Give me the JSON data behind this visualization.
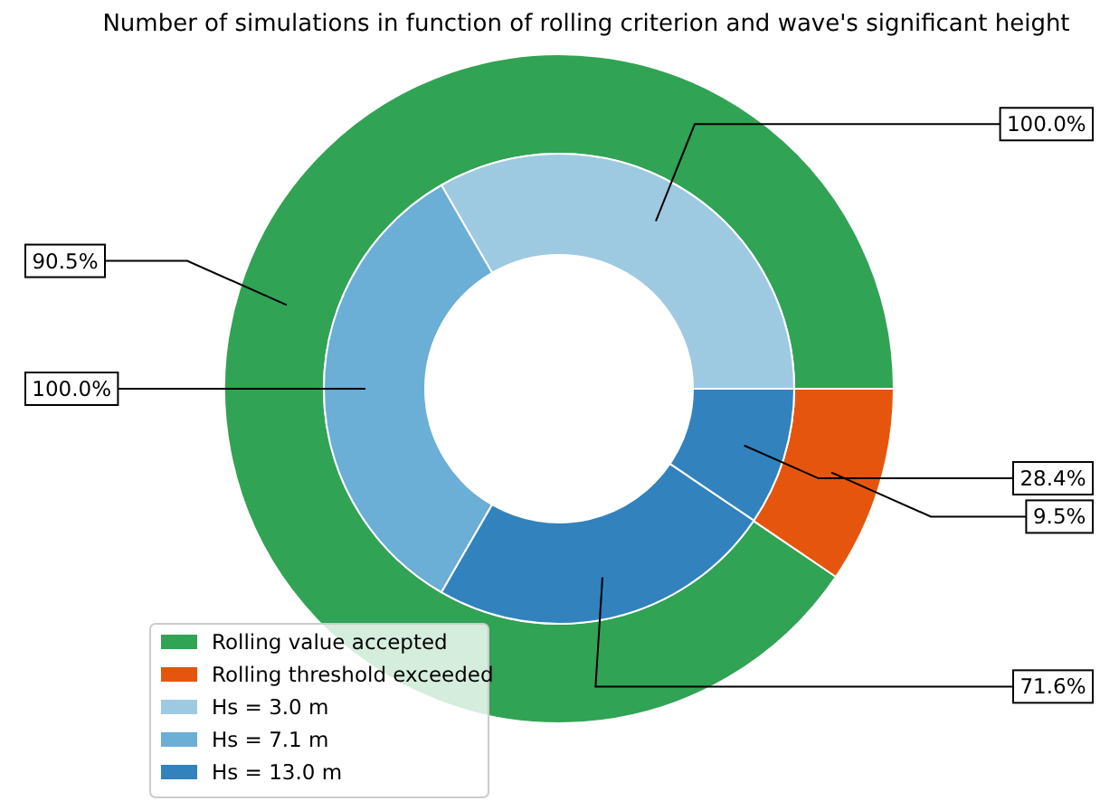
{
  "chart_data": [
    {
      "type": "donut",
      "title": "Number of simulations in function of rolling criterion and wave's significant height",
      "legend": "bottom left",
      "categories": [
        "Rolling value accepted",
        "Rolling threshold exceeded"
      ],
      "values": [
        90.5,
        9.5
      ],
      "colors": [
        "#31a354",
        "#e6550d"
      ],
      "value_labels": [
        "90.5%",
        "9.5%"
      ]
    },
    {
      "type": "donut",
      "legend": "bottom left",
      "categories": [
        "Hs = 3.0 m",
        "Hs = 7.1 m",
        "Hs = 13.0 m",
        null
      ],
      "values": [
        100.0,
        100.0,
        71.6,
        28.4
      ],
      "colors": [
        "#9ecae1",
        "#6baed6",
        "#3182bd",
        "#3182bd"
      ],
      "value_labels": [
        "100.0%",
        "100.0%",
        "71.6%",
        "28.4%"
      ]
    }
  ]
}
